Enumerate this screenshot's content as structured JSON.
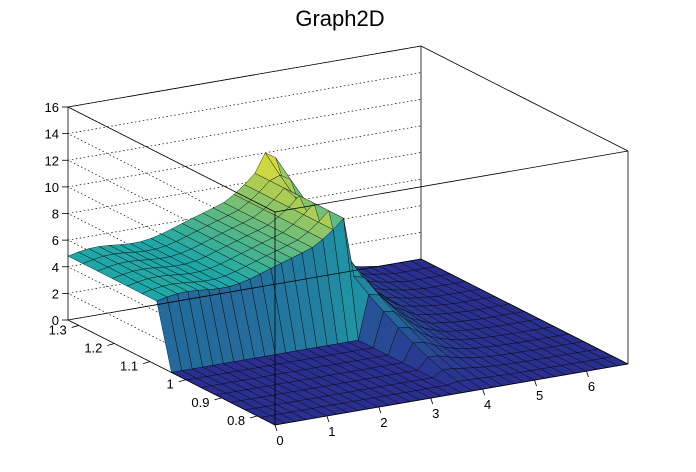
{
  "window": {
    "title": "Graph2D"
  },
  "chart_data": {
    "type": "surface",
    "title": "Graph2D",
    "xlabel": "",
    "ylabel": "",
    "zlabel": "",
    "xlim": [
      0,
      6.8
    ],
    "ylim": [
      0.75,
      1.33
    ],
    "zlim": [
      0,
      16
    ],
    "x_ticks": [
      "0",
      "1",
      "2",
      "3",
      "4",
      "5",
      "6"
    ],
    "y_ticks": [
      "0.8",
      "0.9",
      "1",
      "1.1",
      "1.2",
      "1.3"
    ],
    "z_ticks": [
      "0",
      "2",
      "4",
      "6",
      "8",
      "10",
      "12",
      "14",
      "16"
    ],
    "grid": true,
    "colormap": "viridis",
    "colors": {
      "low": "#2a2f8f",
      "mid": "#1fa7a8",
      "high": "#f7e22a",
      "mesh": "#000000",
      "frame": "#000000",
      "grid": "#000000"
    },
    "surface_profile": {
      "x": [
        0,
        0.5,
        1,
        1.5,
        2,
        2.5,
        3,
        3.3,
        3.6,
        3.8,
        4.0,
        4.2,
        4.5,
        5,
        5.5,
        6,
        6.5,
        6.8
      ],
      "z_back": [
        5,
        5.3,
        5.6,
        6.0,
        6.4,
        6.8,
        7.3,
        7.9,
        8.6,
        10,
        9.5,
        7,
        3.5,
        1,
        0.3,
        0,
        0,
        0
      ],
      "z_front": [
        0,
        0,
        0,
        0,
        0,
        0,
        0,
        0,
        0,
        0,
        0,
        0,
        0,
        0,
        0,
        0,
        0,
        0
      ]
    },
    "peak": {
      "x": 3.8,
      "y": 1.3,
      "z": 10
    },
    "plateau_z": 4.8
  }
}
